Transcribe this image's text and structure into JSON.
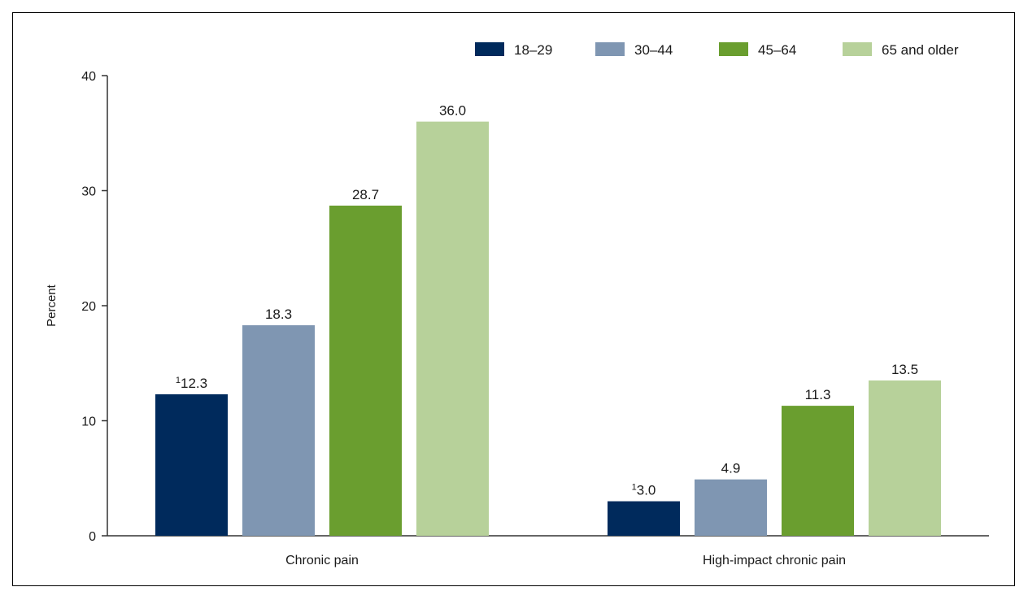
{
  "chart_data": {
    "type": "bar",
    "title": "",
    "xlabel": "",
    "ylabel": "Percent",
    "ylim": [
      0,
      40
    ],
    "yticks": [
      "0",
      "10",
      "20",
      "30",
      "40"
    ],
    "categories": [
      "Chronic pain",
      "High-impact chronic pain"
    ],
    "series": [
      {
        "name": "18–29",
        "color": "#002a5c",
        "values": [
          12.3,
          3.0
        ],
        "labels": [
          "12.3",
          "3.0"
        ],
        "footnotes": [
          "1",
          "1"
        ]
      },
      {
        "name": "30–44",
        "color": "#7f96b2",
        "values": [
          18.3,
          4.9
        ],
        "labels": [
          "18.3",
          "4.9"
        ],
        "footnotes": [
          "",
          ""
        ]
      },
      {
        "name": "45–64",
        "color": "#6a9e2f",
        "values": [
          28.7,
          11.3
        ],
        "labels": [
          "28.7",
          "11.3"
        ],
        "footnotes": [
          "",
          ""
        ]
      },
      {
        "name": "65 and older",
        "color": "#b7d19a",
        "values": [
          36.0,
          13.5
        ],
        "labels": [
          "36.0",
          "13.5"
        ],
        "footnotes": [
          "",
          ""
        ]
      }
    ],
    "legend_position": "top-right",
    "grid": false
  }
}
